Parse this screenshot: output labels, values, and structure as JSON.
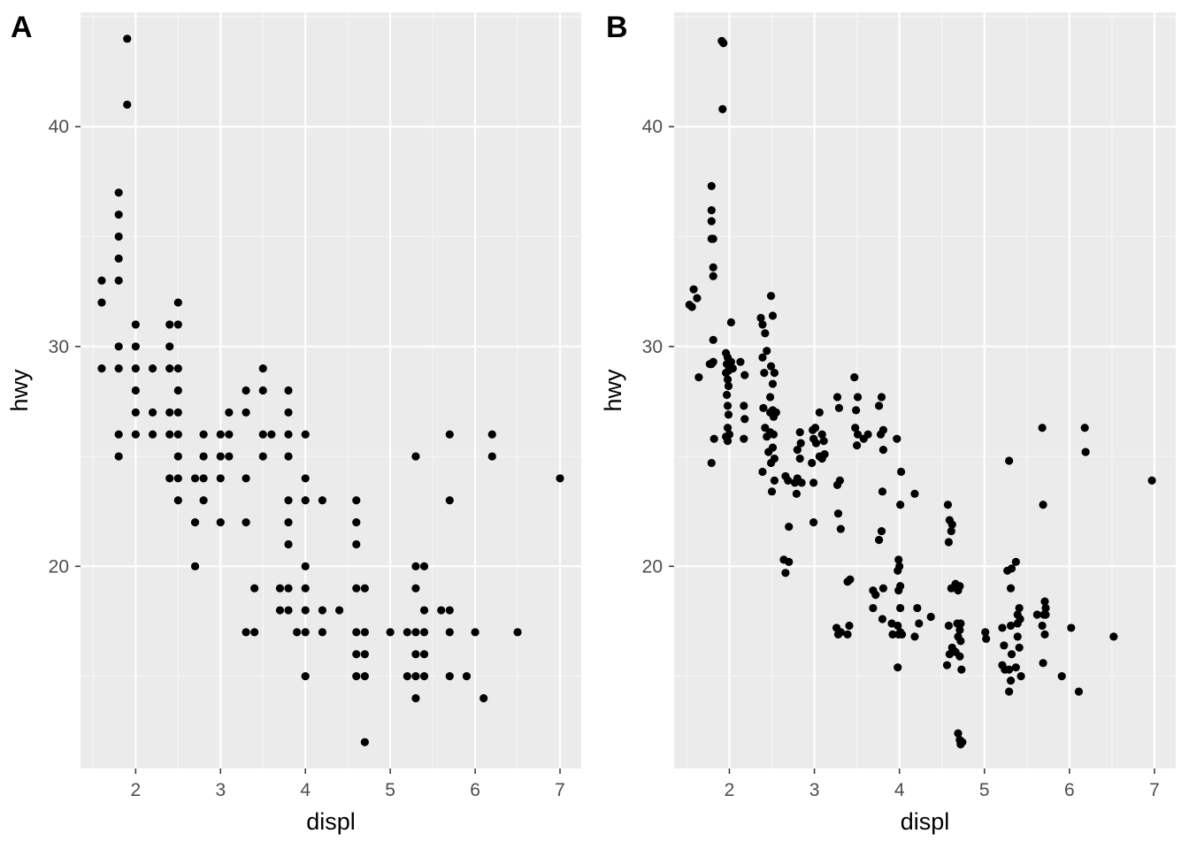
{
  "colors": {
    "panel_bg": "#ebebeb",
    "grid_major": "#ffffff",
    "grid_minor": "#f5f5f5",
    "point": "#000000",
    "tick": "#4d4d4d"
  },
  "chart_data": [
    {
      "type": "scatter",
      "tag": "A",
      "xlabel": "displ",
      "ylabel": "hwy",
      "xlim": [
        1.35,
        7.25
      ],
      "ylim": [
        10.8,
        45.2
      ],
      "xticks": [
        2,
        3,
        4,
        5,
        6,
        7
      ],
      "yticks": [
        20,
        30,
        40
      ],
      "grid": true,
      "points": [
        [
          1.6,
          33
        ],
        [
          1.6,
          32
        ],
        [
          1.6,
          29
        ],
        [
          1.8,
          37
        ],
        [
          1.8,
          36
        ],
        [
          1.8,
          35
        ],
        [
          1.8,
          34
        ],
        [
          1.8,
          33
        ],
        [
          1.8,
          30
        ],
        [
          1.8,
          29
        ],
        [
          1.8,
          26
        ],
        [
          1.8,
          25
        ],
        [
          1.9,
          44
        ],
        [
          1.9,
          41
        ],
        [
          2.0,
          31
        ],
        [
          2.0,
          30
        ],
        [
          2.0,
          29
        ],
        [
          2.0,
          28
        ],
        [
          2.0,
          27
        ],
        [
          2.0,
          26
        ],
        [
          2.2,
          29
        ],
        [
          2.2,
          27
        ],
        [
          2.2,
          26
        ],
        [
          2.4,
          31
        ],
        [
          2.4,
          30
        ],
        [
          2.4,
          29
        ],
        [
          2.4,
          27
        ],
        [
          2.4,
          26
        ],
        [
          2.4,
          24
        ],
        [
          2.5,
          32
        ],
        [
          2.5,
          31
        ],
        [
          2.5,
          29
        ],
        [
          2.5,
          28
        ],
        [
          2.5,
          27
        ],
        [
          2.5,
          26
        ],
        [
          2.5,
          25
        ],
        [
          2.5,
          24
        ],
        [
          2.5,
          23
        ],
        [
          2.7,
          24
        ],
        [
          2.7,
          22
        ],
        [
          2.7,
          20
        ],
        [
          2.8,
          26
        ],
        [
          2.8,
          25
        ],
        [
          2.8,
          24
        ],
        [
          2.8,
          23
        ],
        [
          3.0,
          26
        ],
        [
          3.0,
          25
        ],
        [
          3.0,
          24
        ],
        [
          3.0,
          22
        ],
        [
          3.1,
          27
        ],
        [
          3.1,
          26
        ],
        [
          3.1,
          25
        ],
        [
          3.3,
          28
        ],
        [
          3.3,
          27
        ],
        [
          3.3,
          24
        ],
        [
          3.3,
          22
        ],
        [
          3.3,
          17
        ],
        [
          3.4,
          19
        ],
        [
          3.4,
          17
        ],
        [
          3.5,
          29
        ],
        [
          3.5,
          28
        ],
        [
          3.5,
          26
        ],
        [
          3.5,
          25
        ],
        [
          3.6,
          26
        ],
        [
          3.7,
          19
        ],
        [
          3.7,
          18
        ],
        [
          3.8,
          28
        ],
        [
          3.8,
          27
        ],
        [
          3.8,
          26
        ],
        [
          3.8,
          25
        ],
        [
          3.8,
          23
        ],
        [
          3.8,
          22
        ],
        [
          3.8,
          21
        ],
        [
          3.8,
          19
        ],
        [
          3.8,
          18
        ],
        [
          3.9,
          17
        ],
        [
          4.0,
          26
        ],
        [
          4.0,
          24
        ],
        [
          4.0,
          23
        ],
        [
          4.0,
          20
        ],
        [
          4.0,
          19
        ],
        [
          4.0,
          18
        ],
        [
          4.0,
          17
        ],
        [
          4.0,
          15
        ],
        [
          4.2,
          23
        ],
        [
          4.2,
          18
        ],
        [
          4.2,
          17
        ],
        [
          4.4,
          18
        ],
        [
          4.6,
          23
        ],
        [
          4.6,
          22
        ],
        [
          4.6,
          21
        ],
        [
          4.6,
          19
        ],
        [
          4.6,
          17
        ],
        [
          4.6,
          16
        ],
        [
          4.6,
          15
        ],
        [
          4.7,
          19
        ],
        [
          4.7,
          17
        ],
        [
          4.7,
          16
        ],
        [
          4.7,
          15
        ],
        [
          4.7,
          12
        ],
        [
          5.0,
          17
        ],
        [
          5.2,
          17
        ],
        [
          5.2,
          15
        ],
        [
          5.3,
          25
        ],
        [
          5.3,
          20
        ],
        [
          5.3,
          19
        ],
        [
          5.3,
          17
        ],
        [
          5.3,
          16
        ],
        [
          5.3,
          15
        ],
        [
          5.3,
          14
        ],
        [
          5.4,
          20
        ],
        [
          5.4,
          18
        ],
        [
          5.4,
          17
        ],
        [
          5.4,
          16
        ],
        [
          5.4,
          15
        ],
        [
          5.6,
          18
        ],
        [
          5.7,
          26
        ],
        [
          5.7,
          23
        ],
        [
          5.7,
          18
        ],
        [
          5.7,
          17
        ],
        [
          5.7,
          15
        ],
        [
          5.9,
          15
        ],
        [
          6.0,
          17
        ],
        [
          6.1,
          14
        ],
        [
          6.2,
          26
        ],
        [
          6.2,
          25
        ],
        [
          6.5,
          17
        ],
        [
          7.0,
          24
        ]
      ]
    },
    {
      "type": "scatter",
      "tag": "B",
      "xlabel": "displ",
      "ylabel": "hwy",
      "xlim": [
        1.35,
        7.25
      ],
      "ylim": [
        10.8,
        45.2
      ],
      "xticks": [
        2,
        3,
        4,
        5,
        6,
        7
      ],
      "yticks": [
        20,
        30,
        40
      ],
      "grid": true,
      "points": [
        [
          1.53,
          31.9
        ],
        [
          1.56,
          31.8
        ],
        [
          1.58,
          32.6
        ],
        [
          1.62,
          32.2
        ],
        [
          1.64,
          28.6
        ],
        [
          1.77,
          29.2
        ],
        [
          1.79,
          37.3
        ],
        [
          1.79,
          36.2
        ],
        [
          1.79,
          35.7
        ],
        [
          1.79,
          34.9
        ],
        [
          1.81,
          34.9
        ],
        [
          1.81,
          33.6
        ],
        [
          1.81,
          33.2
        ],
        [
          1.81,
          30.3
        ],
        [
          1.81,
          29.3
        ],
        [
          1.79,
          29.2
        ],
        [
          1.82,
          25.8
        ],
        [
          1.79,
          24.7
        ],
        [
          1.91,
          43.9
        ],
        [
          1.93,
          43.8
        ],
        [
          1.92,
          40.8
        ],
        [
          1.96,
          29.7
        ],
        [
          1.98,
          29.5
        ],
        [
          1.97,
          29.2
        ],
        [
          1.99,
          28.9
        ],
        [
          1.96,
          28.8
        ],
        [
          1.98,
          28.5
        ],
        [
          1.99,
          28.2
        ],
        [
          1.97,
          27.8
        ],
        [
          1.98,
          27.3
        ],
        [
          1.99,
          26.9
        ],
        [
          1.98,
          26.3
        ],
        [
          2.0,
          26.0
        ],
        [
          1.98,
          25.7
        ],
        [
          2.02,
          31.1
        ],
        [
          2.02,
          29.3
        ],
        [
          2.04,
          29.0
        ],
        [
          1.96,
          25.9
        ],
        [
          2.13,
          29.3
        ],
        [
          2.18,
          28.7
        ],
        [
          2.17,
          27.3
        ],
        [
          2.18,
          26.7
        ],
        [
          2.17,
          25.8
        ],
        [
          2.37,
          31.3
        ],
        [
          2.39,
          31.0
        ],
        [
          2.42,
          30.6
        ],
        [
          2.39,
          29.5
        ],
        [
          2.41,
          28.8
        ],
        [
          2.44,
          29.8
        ],
        [
          2.42,
          26.3
        ],
        [
          2.44,
          25.9
        ],
        [
          2.39,
          24.3
        ],
        [
          2.4,
          27.2
        ],
        [
          2.49,
          32.3
        ],
        [
          2.51,
          31.4
        ],
        [
          2.49,
          29.1
        ],
        [
          2.53,
          28.8
        ],
        [
          2.51,
          28.3
        ],
        [
          2.48,
          27.7
        ],
        [
          2.51,
          27.1
        ],
        [
          2.52,
          26.8
        ],
        [
          2.48,
          26.1
        ],
        [
          2.51,
          25.4
        ],
        [
          2.53,
          24.9
        ],
        [
          2.49,
          24.7
        ],
        [
          2.53,
          23.9
        ],
        [
          2.5,
          23.4
        ],
        [
          2.46,
          25.2
        ],
        [
          2.52,
          26.0
        ],
        [
          2.48,
          27.0
        ],
        [
          2.55,
          27.0
        ],
        [
          2.66,
          24.1
        ],
        [
          2.69,
          23.9
        ],
        [
          2.64,
          20.3
        ],
        [
          2.7,
          20.2
        ],
        [
          2.66,
          19.7
        ],
        [
          2.7,
          21.8
        ],
        [
          2.77,
          23.8
        ],
        [
          2.79,
          23.3
        ],
        [
          2.83,
          26.1
        ],
        [
          2.84,
          25.6
        ],
        [
          2.8,
          25.3
        ],
        [
          2.83,
          24.9
        ],
        [
          2.8,
          24.0
        ],
        [
          2.85,
          23.8
        ],
        [
          2.98,
          26.2
        ],
        [
          3.01,
          26.3
        ],
        [
          2.99,
          25.8
        ],
        [
          3.02,
          25.6
        ],
        [
          2.97,
          24.7
        ],
        [
          2.99,
          23.8
        ],
        [
          2.99,
          22.0
        ],
        [
          3.06,
          27.0
        ],
        [
          3.09,
          26.0
        ],
        [
          3.11,
          25.7
        ],
        [
          3.06,
          25.0
        ],
        [
          3.09,
          24.9
        ],
        [
          3.12,
          25.1
        ],
        [
          3.27,
          27.7
        ],
        [
          3.29,
          27.2
        ],
        [
          3.27,
          23.7
        ],
        [
          3.3,
          23.9
        ],
        [
          3.28,
          22.4
        ],
        [
          3.31,
          21.7
        ],
        [
          3.26,
          17.2
        ],
        [
          3.28,
          16.9
        ],
        [
          3.31,
          17.0
        ],
        [
          3.39,
          19.3
        ],
        [
          3.42,
          19.4
        ],
        [
          3.41,
          17.3
        ],
        [
          3.39,
          16.9
        ],
        [
          3.47,
          28.6
        ],
        [
          3.51,
          27.7
        ],
        [
          3.49,
          27.1
        ],
        [
          3.48,
          26.3
        ],
        [
          3.51,
          26.0
        ],
        [
          3.5,
          25.5
        ],
        [
          3.58,
          25.8
        ],
        [
          3.63,
          26.0
        ],
        [
          3.69,
          18.9
        ],
        [
          3.72,
          18.7
        ],
        [
          3.69,
          18.1
        ],
        [
          3.76,
          27.3
        ],
        [
          3.79,
          27.7
        ],
        [
          3.81,
          26.2
        ],
        [
          3.78,
          26.0
        ],
        [
          3.81,
          25.3
        ],
        [
          3.8,
          23.4
        ],
        [
          3.79,
          21.6
        ],
        [
          3.76,
          21.2
        ],
        [
          3.81,
          19.0
        ],
        [
          3.8,
          17.6
        ],
        [
          3.91,
          17.4
        ],
        [
          3.92,
          16.9
        ],
        [
          3.97,
          25.8
        ],
        [
          4.02,
          24.3
        ],
        [
          4.01,
          22.8
        ],
        [
          3.99,
          20.3
        ],
        [
          3.98,
          19.8
        ],
        [
          4.0,
          20.0
        ],
        [
          4.01,
          19.1
        ],
        [
          3.99,
          18.9
        ],
        [
          4.01,
          18.1
        ],
        [
          3.98,
          17.3
        ],
        [
          3.99,
          16.9
        ],
        [
          4.01,
          17.0
        ],
        [
          4.03,
          16.9
        ],
        [
          3.98,
          15.4
        ],
        [
          4.18,
          23.3
        ],
        [
          4.21,
          18.1
        ],
        [
          4.18,
          16.8
        ],
        [
          4.23,
          17.4
        ],
        [
          4.37,
          17.7
        ],
        [
          4.57,
          22.8
        ],
        [
          4.59,
          22.1
        ],
        [
          4.61,
          21.6
        ],
        [
          4.58,
          21.1
        ],
        [
          4.61,
          19.0
        ],
        [
          4.58,
          17.3
        ],
        [
          4.62,
          16.3
        ],
        [
          4.59,
          16.0
        ],
        [
          4.56,
          15.5
        ],
        [
          4.62,
          21.9
        ],
        [
          4.66,
          19.2
        ],
        [
          4.69,
          18.9
        ],
        [
          4.71,
          19.1
        ],
        [
          4.68,
          17.4
        ],
        [
          4.71,
          17.1
        ],
        [
          4.69,
          16.8
        ],
        [
          4.72,
          16.6
        ],
        [
          4.66,
          16.1
        ],
        [
          4.71,
          15.9
        ],
        [
          4.69,
          12.4
        ],
        [
          4.71,
          12.1
        ],
        [
          4.72,
          11.9
        ],
        [
          4.74,
          12.0
        ],
        [
          4.73,
          15.3
        ],
        [
          4.72,
          17.4
        ],
        [
          5.01,
          17.0
        ],
        [
          5.02,
          16.7
        ],
        [
          5.21,
          17.2
        ],
        [
          5.23,
          16.4
        ],
        [
          5.21,
          15.5
        ],
        [
          5.24,
          15.3
        ],
        [
          5.29,
          24.8
        ],
        [
          5.27,
          19.8
        ],
        [
          5.31,
          19.0
        ],
        [
          5.32,
          19.9
        ],
        [
          5.31,
          17.3
        ],
        [
          5.32,
          16.0
        ],
        [
          5.29,
          15.3
        ],
        [
          5.31,
          14.8
        ],
        [
          5.29,
          14.3
        ],
        [
          5.37,
          20.2
        ],
        [
          5.39,
          17.8
        ],
        [
          5.41,
          18.1
        ],
        [
          5.39,
          17.4
        ],
        [
          5.42,
          17.6
        ],
        [
          5.39,
          16.8
        ],
        [
          5.41,
          16.3
        ],
        [
          5.37,
          15.4
        ],
        [
          5.43,
          15.0
        ],
        [
          5.62,
          17.8
        ],
        [
          5.68,
          26.3
        ],
        [
          5.69,
          22.8
        ],
        [
          5.71,
          18.4
        ],
        [
          5.72,
          18.1
        ],
        [
          5.7,
          17.8
        ],
        [
          5.68,
          17.3
        ],
        [
          5.71,
          16.9
        ],
        [
          5.69,
          15.6
        ],
        [
          5.72,
          17.8
        ],
        [
          5.91,
          15.0
        ],
        [
          6.02,
          17.2
        ],
        [
          6.11,
          14.3
        ],
        [
          6.18,
          26.3
        ],
        [
          6.19,
          25.2
        ],
        [
          6.52,
          16.8
        ],
        [
          6.97,
          23.9
        ]
      ]
    }
  ]
}
